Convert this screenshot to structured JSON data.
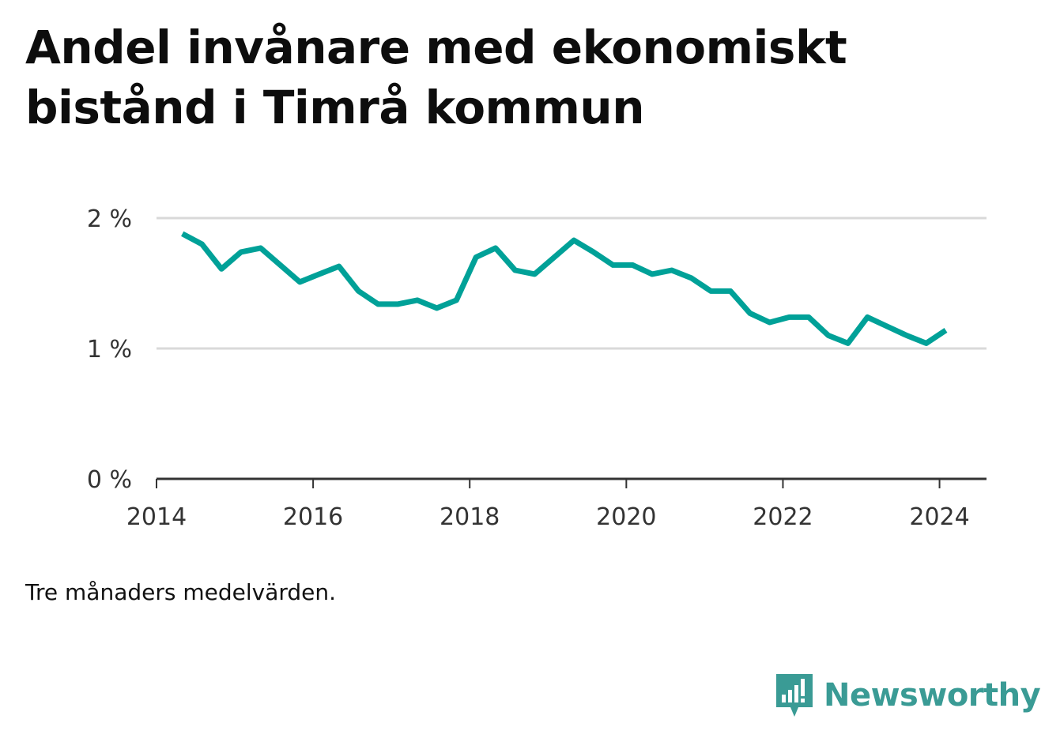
{
  "title": "Andel invånare med ekonomiskt bistånd i Timrå kommun",
  "note": "Tre månaders medelvärden.",
  "brand": {
    "name": "Newsworthy",
    "icon": "newsworthy-logo-icon",
    "color": "#3a9b95"
  },
  "colors": {
    "line": "#00a198",
    "grid": "#d9d9d9",
    "axis": "#333333",
    "tick_text": "#333333"
  },
  "chart_data": {
    "type": "line",
    "title": "Andel invånare med ekonomiskt bistånd i Timrå kommun",
    "xlabel": "",
    "ylabel": "",
    "xlim": [
      2014.0,
      2024.6
    ],
    "ylim": [
      0,
      2
    ],
    "x_ticks": [
      2014,
      2016,
      2018,
      2020,
      2022,
      2024
    ],
    "x_tick_labels": [
      "2014",
      "2016",
      "2018",
      "2020",
      "2022",
      "2024"
    ],
    "y_ticks": [
      0,
      1,
      2
    ],
    "y_tick_labels": [
      "0 %",
      "1 %",
      "2 %"
    ],
    "grid": true,
    "series": [
      {
        "values": [
          [
            2014.33,
            1.88
          ],
          [
            2014.58,
            1.8
          ],
          [
            2014.83,
            1.61
          ],
          [
            2015.08,
            1.74
          ],
          [
            2015.33,
            1.77
          ],
          [
            2015.58,
            1.64
          ],
          [
            2015.83,
            1.51
          ],
          [
            2016.08,
            1.57
          ],
          [
            2016.33,
            1.63
          ],
          [
            2016.58,
            1.44
          ],
          [
            2016.83,
            1.34
          ],
          [
            2017.08,
            1.34
          ],
          [
            2017.33,
            1.37
          ],
          [
            2017.58,
            1.31
          ],
          [
            2017.83,
            1.37
          ],
          [
            2018.08,
            1.7
          ],
          [
            2018.33,
            1.77
          ],
          [
            2018.58,
            1.6
          ],
          [
            2018.83,
            1.57
          ],
          [
            2019.08,
            1.7
          ],
          [
            2019.33,
            1.83
          ],
          [
            2019.58,
            1.74
          ],
          [
            2019.83,
            1.64
          ],
          [
            2020.08,
            1.64
          ],
          [
            2020.33,
            1.57
          ],
          [
            2020.58,
            1.6
          ],
          [
            2020.83,
            1.54
          ],
          [
            2021.08,
            1.44
          ],
          [
            2021.33,
            1.44
          ],
          [
            2021.58,
            1.27
          ],
          [
            2021.83,
            1.2
          ],
          [
            2022.08,
            1.24
          ],
          [
            2022.33,
            1.24
          ],
          [
            2022.58,
            1.1
          ],
          [
            2022.83,
            1.04
          ],
          [
            2023.08,
            1.24
          ],
          [
            2023.33,
            1.17
          ],
          [
            2023.58,
            1.1
          ],
          [
            2023.83,
            1.04
          ],
          [
            2024.08,
            1.14
          ]
        ]
      }
    ]
  }
}
